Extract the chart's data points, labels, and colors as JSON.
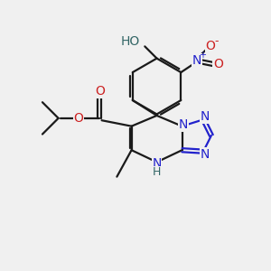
{
  "bg_color": "#f0f0f0",
  "bond_color": "#1a1a1a",
  "nitrogen_color": "#2222cc",
  "oxygen_color": "#cc2222",
  "hydroxyl_color": "#336666",
  "line_width": 1.6,
  "font_size_atom": 10,
  "font_size_small": 8,
  "xlim": [
    0,
    10
  ],
  "ylim": [
    0,
    10
  ]
}
